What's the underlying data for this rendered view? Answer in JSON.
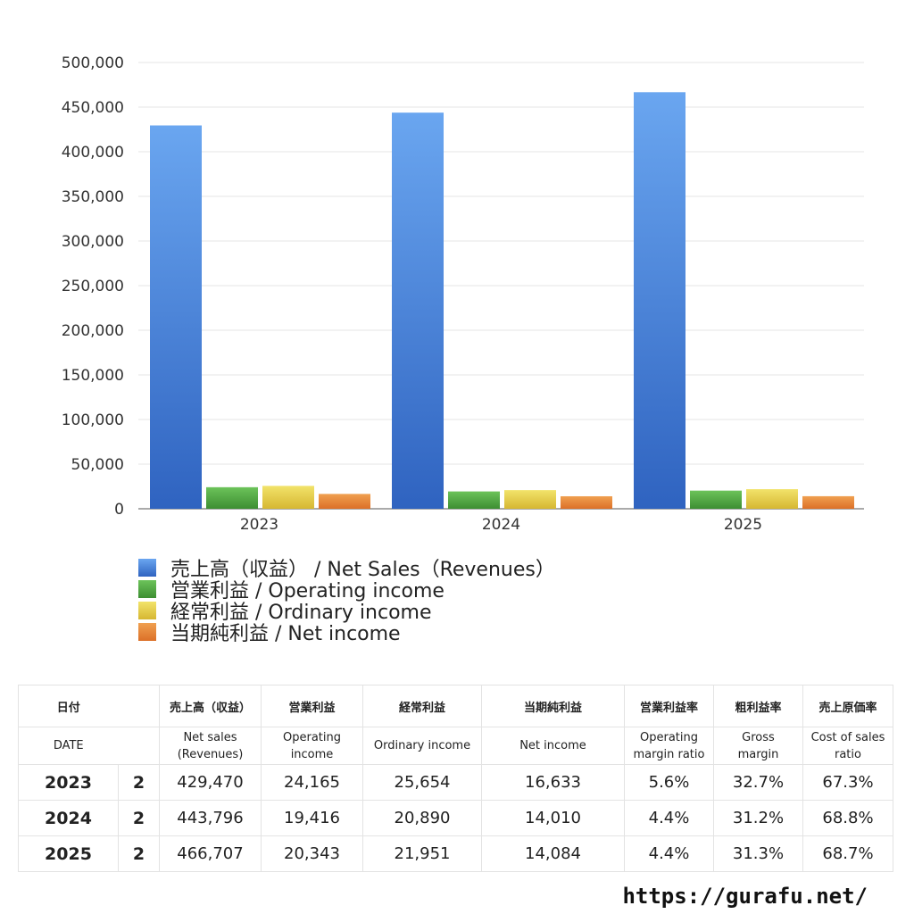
{
  "chart_data": {
    "type": "bar",
    "categories": [
      "2023",
      "2024",
      "2025"
    ],
    "series": [
      {
        "name": "売上高（収益） / Net Sales（Revenues）",
        "values": [
          429470,
          443796,
          466707
        ],
        "color_top": "#6aa6f0",
        "color_bottom": "#2f63c0"
      },
      {
        "name": "営業利益 / Operating income",
        "values": [
          24165,
          19416,
          20343
        ],
        "color_top": "#6cc35a",
        "color_bottom": "#3d8e32"
      },
      {
        "name": "経常利益 / Ordinary income",
        "values": [
          25654,
          20890,
          21951
        ],
        "color_top": "#f2e36a",
        "color_bottom": "#d6b732"
      },
      {
        "name": "当期純利益 / Net income",
        "values": [
          16633,
          14010,
          14084
        ],
        "color_top": "#f0a050",
        "color_bottom": "#dc7028"
      }
    ],
    "yticks": [
      "0",
      "50,000",
      "100,000",
      "150,000",
      "200,000",
      "250,000",
      "300,000",
      "350,000",
      "400,000",
      "450,000",
      "500,000"
    ],
    "ylim": [
      0,
      500000
    ],
    "grid": true,
    "legend_position": "bottom-left"
  },
  "table": {
    "headers_jp": [
      "日付",
      "",
      "売上高（収益）",
      "営業利益",
      "経常利益",
      "当期純利益",
      "営業利益率",
      "粗利益率",
      "売上原価率"
    ],
    "headers_en": [
      "DATE",
      "",
      "Net sales\n(Revenues)",
      "Operating\nincome",
      "Ordinary income",
      "Net income",
      "Operating\nmargin ratio",
      "Gross\nmargin",
      "Cost of sales\nratio"
    ],
    "rows": [
      [
        "2023",
        "2",
        "429,470",
        "24,165",
        "25,654",
        "16,633",
        "5.6%",
        "32.7%",
        "67.3%"
      ],
      [
        "2024",
        "2",
        "443,796",
        "19,416",
        "20,890",
        "14,010",
        "4.4%",
        "31.2%",
        "68.8%"
      ],
      [
        "2025",
        "2",
        "466,707",
        "20,343",
        "21,951",
        "14,084",
        "4.4%",
        "31.3%",
        "68.7%"
      ]
    ]
  },
  "footer": {
    "url": "https://gurafu.net/"
  }
}
